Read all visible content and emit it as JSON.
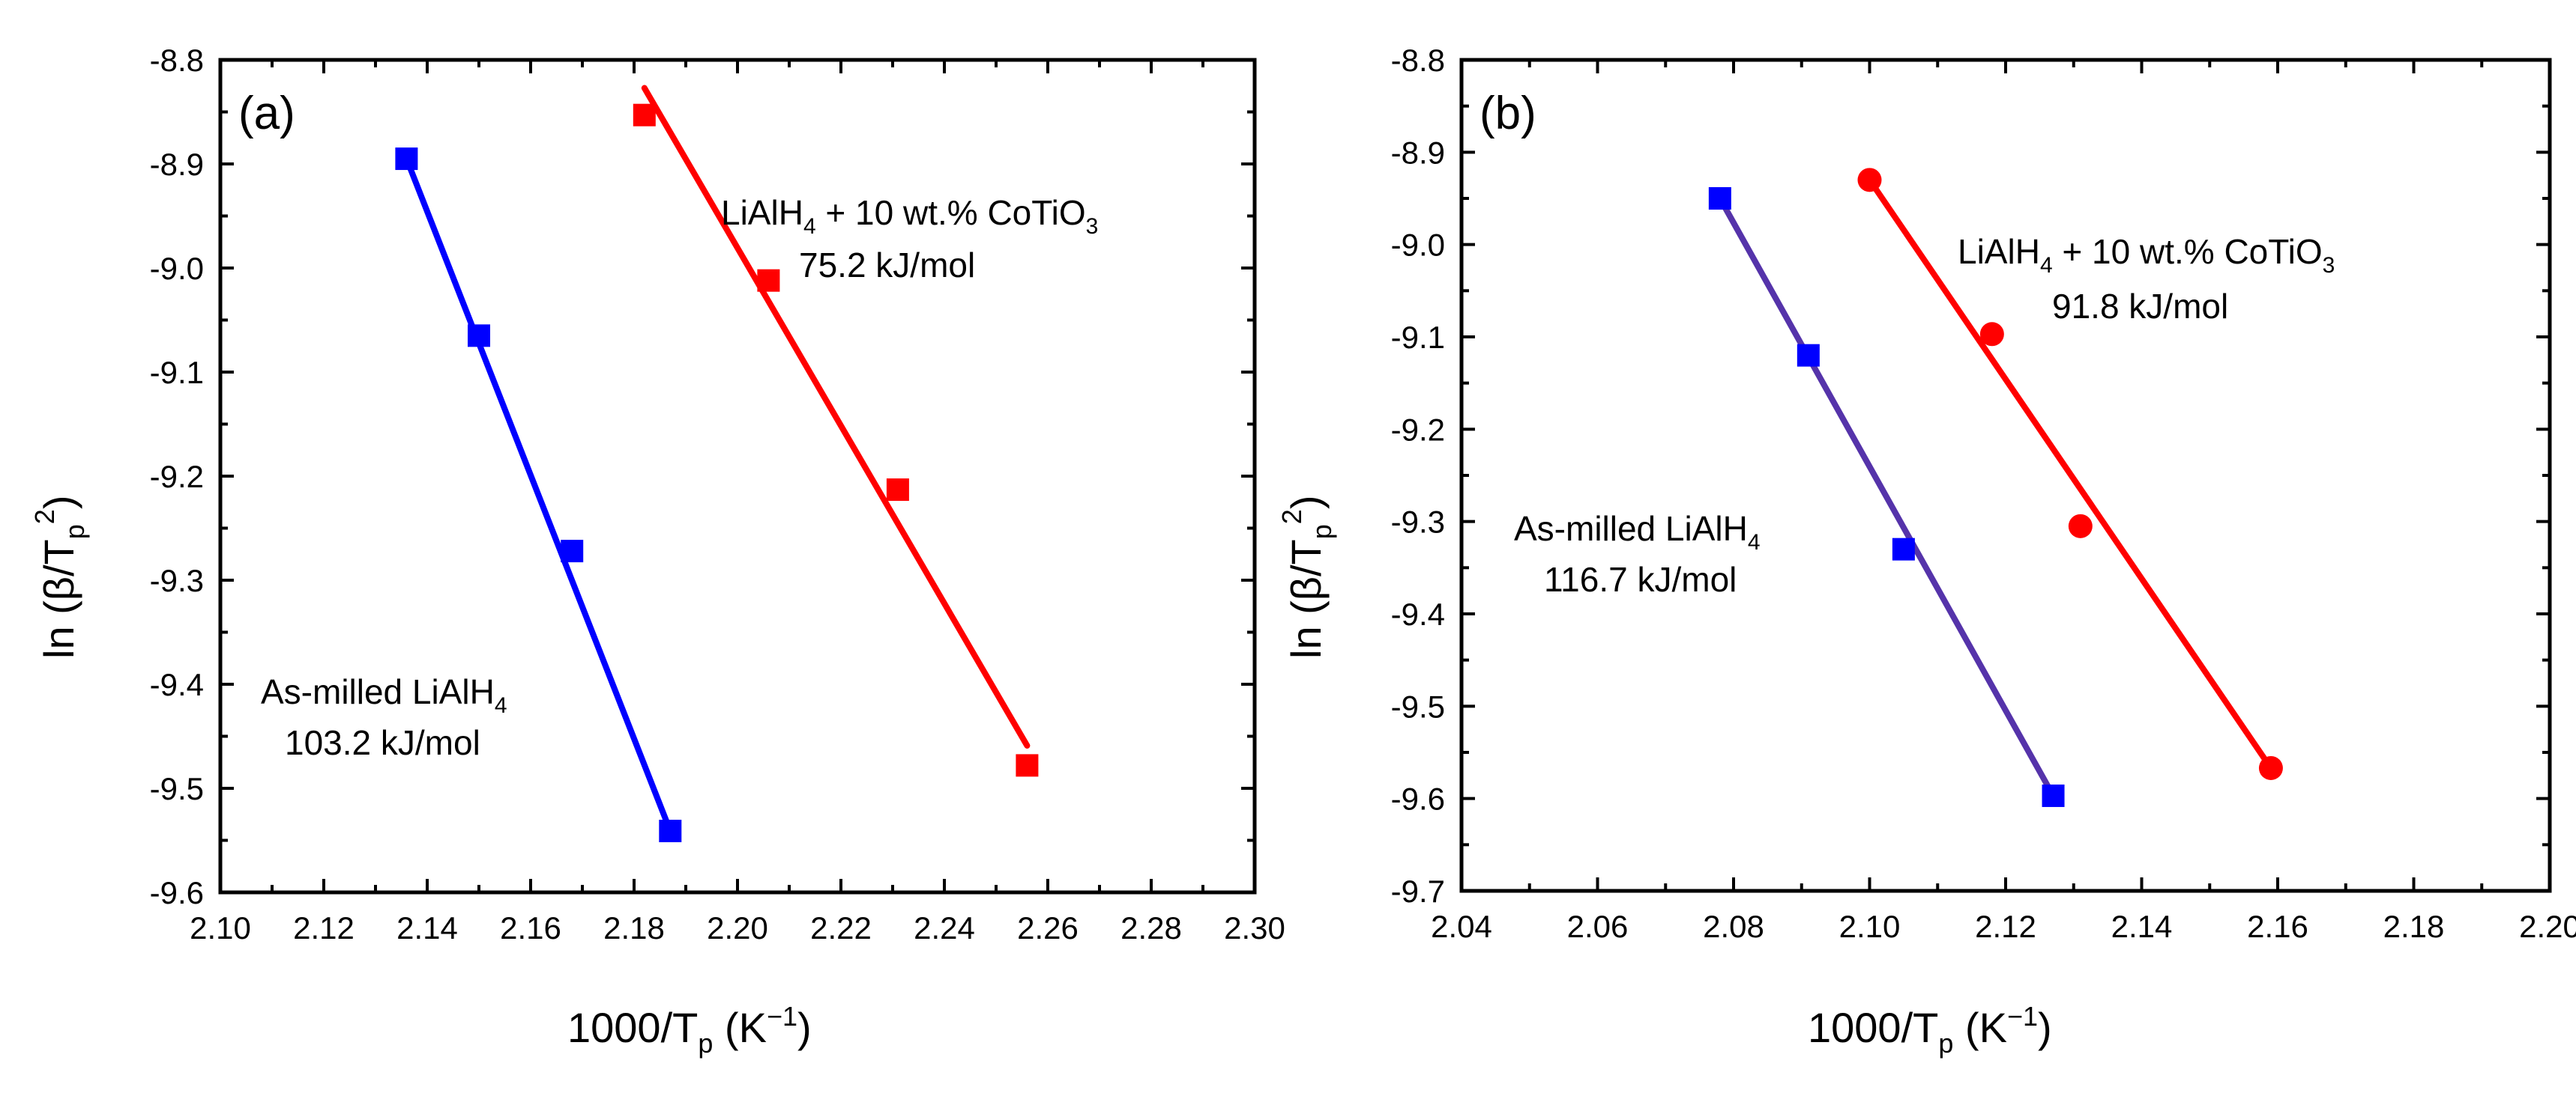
{
  "chart_data": [
    {
      "type": "scatter",
      "panel_label": "(a)",
      "xlabel_main": "1000/T",
      "xlabel_sub": "p",
      "xlabel_unit_open": " (K",
      "xlabel_unit_sup": "−1",
      "xlabel_unit_close": ")",
      "ylabel_pre": "ln (β/T",
      "ylabel_sub": "p",
      "ylabel_sup": "2",
      "ylabel_post": ")",
      "xlim": [
        2.1,
        2.3
      ],
      "ylim": [
        -9.6,
        -8.8
      ],
      "xticks": [
        2.1,
        2.12,
        2.14,
        2.16,
        2.18,
        2.2,
        2.22,
        2.24,
        2.26,
        2.28,
        2.3
      ],
      "xtick_labels": [
        "2.10",
        "2.12",
        "2.14",
        "2.16",
        "2.18",
        "2.20",
        "2.22",
        "2.24",
        "2.26",
        "2.28",
        "2.30"
      ],
      "yticks": [
        -9.6,
        -9.5,
        -9.4,
        -9.3,
        -9.2,
        -9.1,
        -9.0,
        -8.9,
        -8.8
      ],
      "ytick_labels": [
        "-9.6",
        "-9.5",
        "-9.4",
        "-9.3",
        "-9.2",
        "-9.1",
        "-9.0",
        "-8.9",
        "-8.8"
      ],
      "series": [
        {
          "name": "As-milled LiAlH4",
          "color": "#0000ff",
          "line_color": "#0000ff",
          "marker": "square",
          "x": [
            2.136,
            2.15,
            2.168,
            2.187
          ],
          "y": [
            -8.895,
            -9.065,
            -9.272,
            -9.541
          ],
          "fit": {
            "x": [
              2.136,
              2.187
            ],
            "y": [
              -8.895,
              -9.541
            ]
          },
          "label_line1": "As-milled LiAlH",
          "label_line1_sub": "4",
          "label_line2": "103.2 kJ/mol"
        },
        {
          "name": "LiAlH4 + 10 wt.% CoTiO3",
          "color": "#ff0000",
          "line_color": "#ff0000",
          "marker": "square",
          "x": [
            2.182,
            2.206,
            2.231,
            2.256
          ],
          "y": [
            -8.853,
            -9.012,
            -9.213,
            -9.478
          ],
          "fit": {
            "x": [
              2.182,
              2.256
            ],
            "y": [
              -8.827,
              -9.459
            ]
          },
          "label_line1_a": "LiAlH",
          "label_line1_sub1": "4",
          "label_line1_b": " + 10 wt.% CoTiO",
          "label_line1_sub2": "3",
          "label_line2": "75.2 kJ/mol"
        }
      ]
    },
    {
      "type": "scatter",
      "panel_label": "(b)",
      "xlabel_main": "1000/T",
      "xlabel_sub": "p",
      "xlabel_unit_open": " (K",
      "xlabel_unit_sup": "−1",
      "xlabel_unit_close": ")",
      "ylabel_pre": "ln (β/T",
      "ylabel_sub": "p",
      "ylabel_sup": "2",
      "ylabel_post": ")",
      "xlim": [
        2.04,
        2.2
      ],
      "ylim": [
        -9.7,
        -8.8
      ],
      "xticks": [
        2.04,
        2.06,
        2.08,
        2.1,
        2.12,
        2.14,
        2.16,
        2.18,
        2.2
      ],
      "xtick_labels": [
        "2.04",
        "2.06",
        "2.08",
        "2.10",
        "2.12",
        "2.14",
        "2.16",
        "2.18",
        "2.20"
      ],
      "yticks": [
        -9.7,
        -9.6,
        -9.5,
        -9.4,
        -9.3,
        -9.2,
        -9.1,
        -9.0,
        -8.9,
        -8.8
      ],
      "ytick_labels": [
        "-9.7",
        "-9.6",
        "-9.5",
        "-9.4",
        "-9.3",
        "-9.2",
        "-9.1",
        "-9.0",
        "-8.9",
        "-8.8"
      ],
      "series": [
        {
          "name": "As-milled LiAlH4",
          "color": "#0000ff",
          "line_color": "#5533aa",
          "marker": "square",
          "x": [
            2.078,
            2.091,
            2.105,
            2.127
          ],
          "y": [
            -8.95,
            -9.12,
            -9.33,
            -9.597
          ],
          "fit": {
            "x": [
              2.078,
              2.127
            ],
            "y": [
              -8.95,
              -9.597
            ]
          },
          "label_line1": "As-milled LiAlH",
          "label_line1_sub": "4",
          "label_line2": "116.7 kJ/mol"
        },
        {
          "name": "LiAlH4 + 10 wt.% CoTiO3",
          "color": "#ff0000",
          "line_color": "#ff0000",
          "marker": "circle",
          "x": [
            2.1,
            2.118,
            2.131,
            2.159
          ],
          "y": [
            -8.93,
            -9.097,
            -9.305,
            -9.567
          ],
          "fit": {
            "x": [
              2.1,
              2.159
            ],
            "y": [
              -8.93,
              -9.567
            ]
          },
          "label_line1_a": "LiAlH",
          "label_line1_sub1": "4",
          "label_line1_b": " + 10 wt.% CoTiO",
          "label_line1_sub2": "3",
          "label_line2": "91.8 kJ/mol"
        }
      ]
    }
  ]
}
